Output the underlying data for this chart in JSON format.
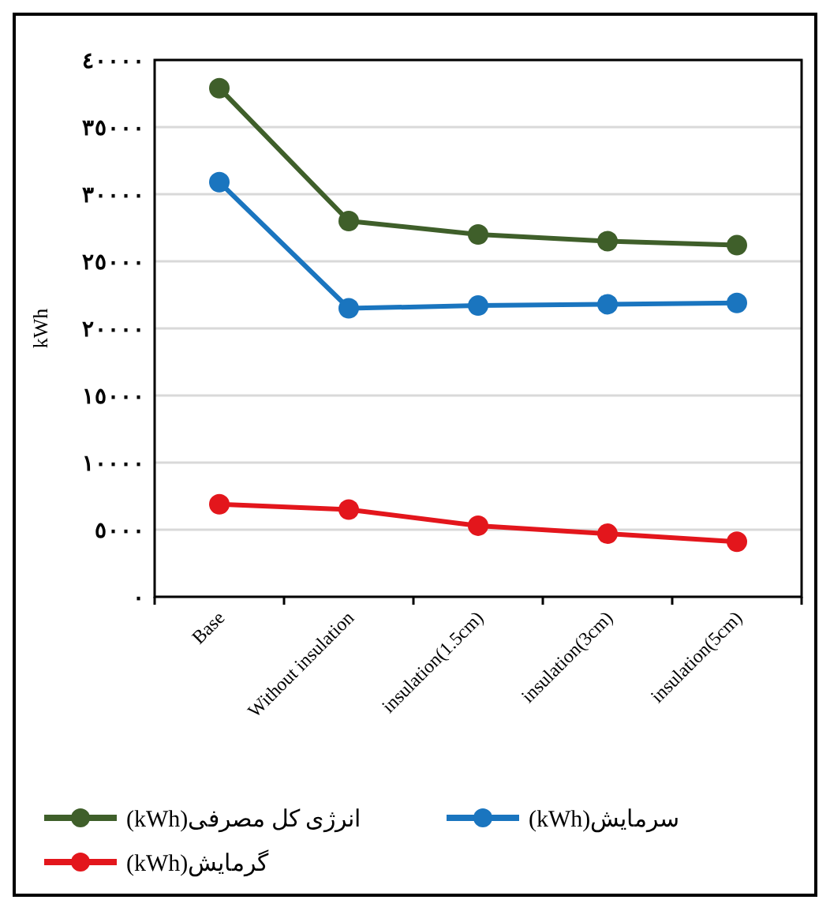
{
  "chart_data": {
    "type": "line",
    "ylabel": "kWh",
    "categories": [
      "Base",
      "Without insulation",
      "insulation(1.5cm)",
      "insulation(3cm)",
      "insulation(5cm)"
    ],
    "series": [
      {
        "name": "انرژی کل مصرفی(kWh)",
        "color": "#3f5f2a",
        "values": [
          37900,
          28000,
          27000,
          26500,
          26200
        ]
      },
      {
        "name": "سرمایش(kWh)",
        "color": "#1a75bf",
        "values": [
          30900,
          21500,
          21700,
          21800,
          21900
        ]
      },
      {
        "name": "گرمایش(kWh)",
        "color": "#e3161c",
        "values": [
          6900,
          6500,
          5300,
          4700,
          4100
        ]
      }
    ],
    "ylim": [
      0,
      40000
    ],
    "yticks": [
      {
        "value": 0,
        "label": "٠"
      },
      {
        "value": 5000,
        "label": "٥٠٠٠"
      },
      {
        "value": 10000,
        "label": "١٠٠٠٠"
      },
      {
        "value": 15000,
        "label": "١٥٠٠٠"
      },
      {
        "value": 20000,
        "label": "٢٠٠٠٠"
      },
      {
        "value": 25000,
        "label": "٢٥٠٠٠"
      },
      {
        "value": 30000,
        "label": "٣٠٠٠٠"
      },
      {
        "value": 35000,
        "label": "٣٥٠٠٠"
      },
      {
        "value": 40000,
        "label": "٤٠٠٠٠"
      }
    ],
    "grid": "y",
    "legend": "bottom",
    "marker": "circle",
    "line_style": "solid"
  }
}
